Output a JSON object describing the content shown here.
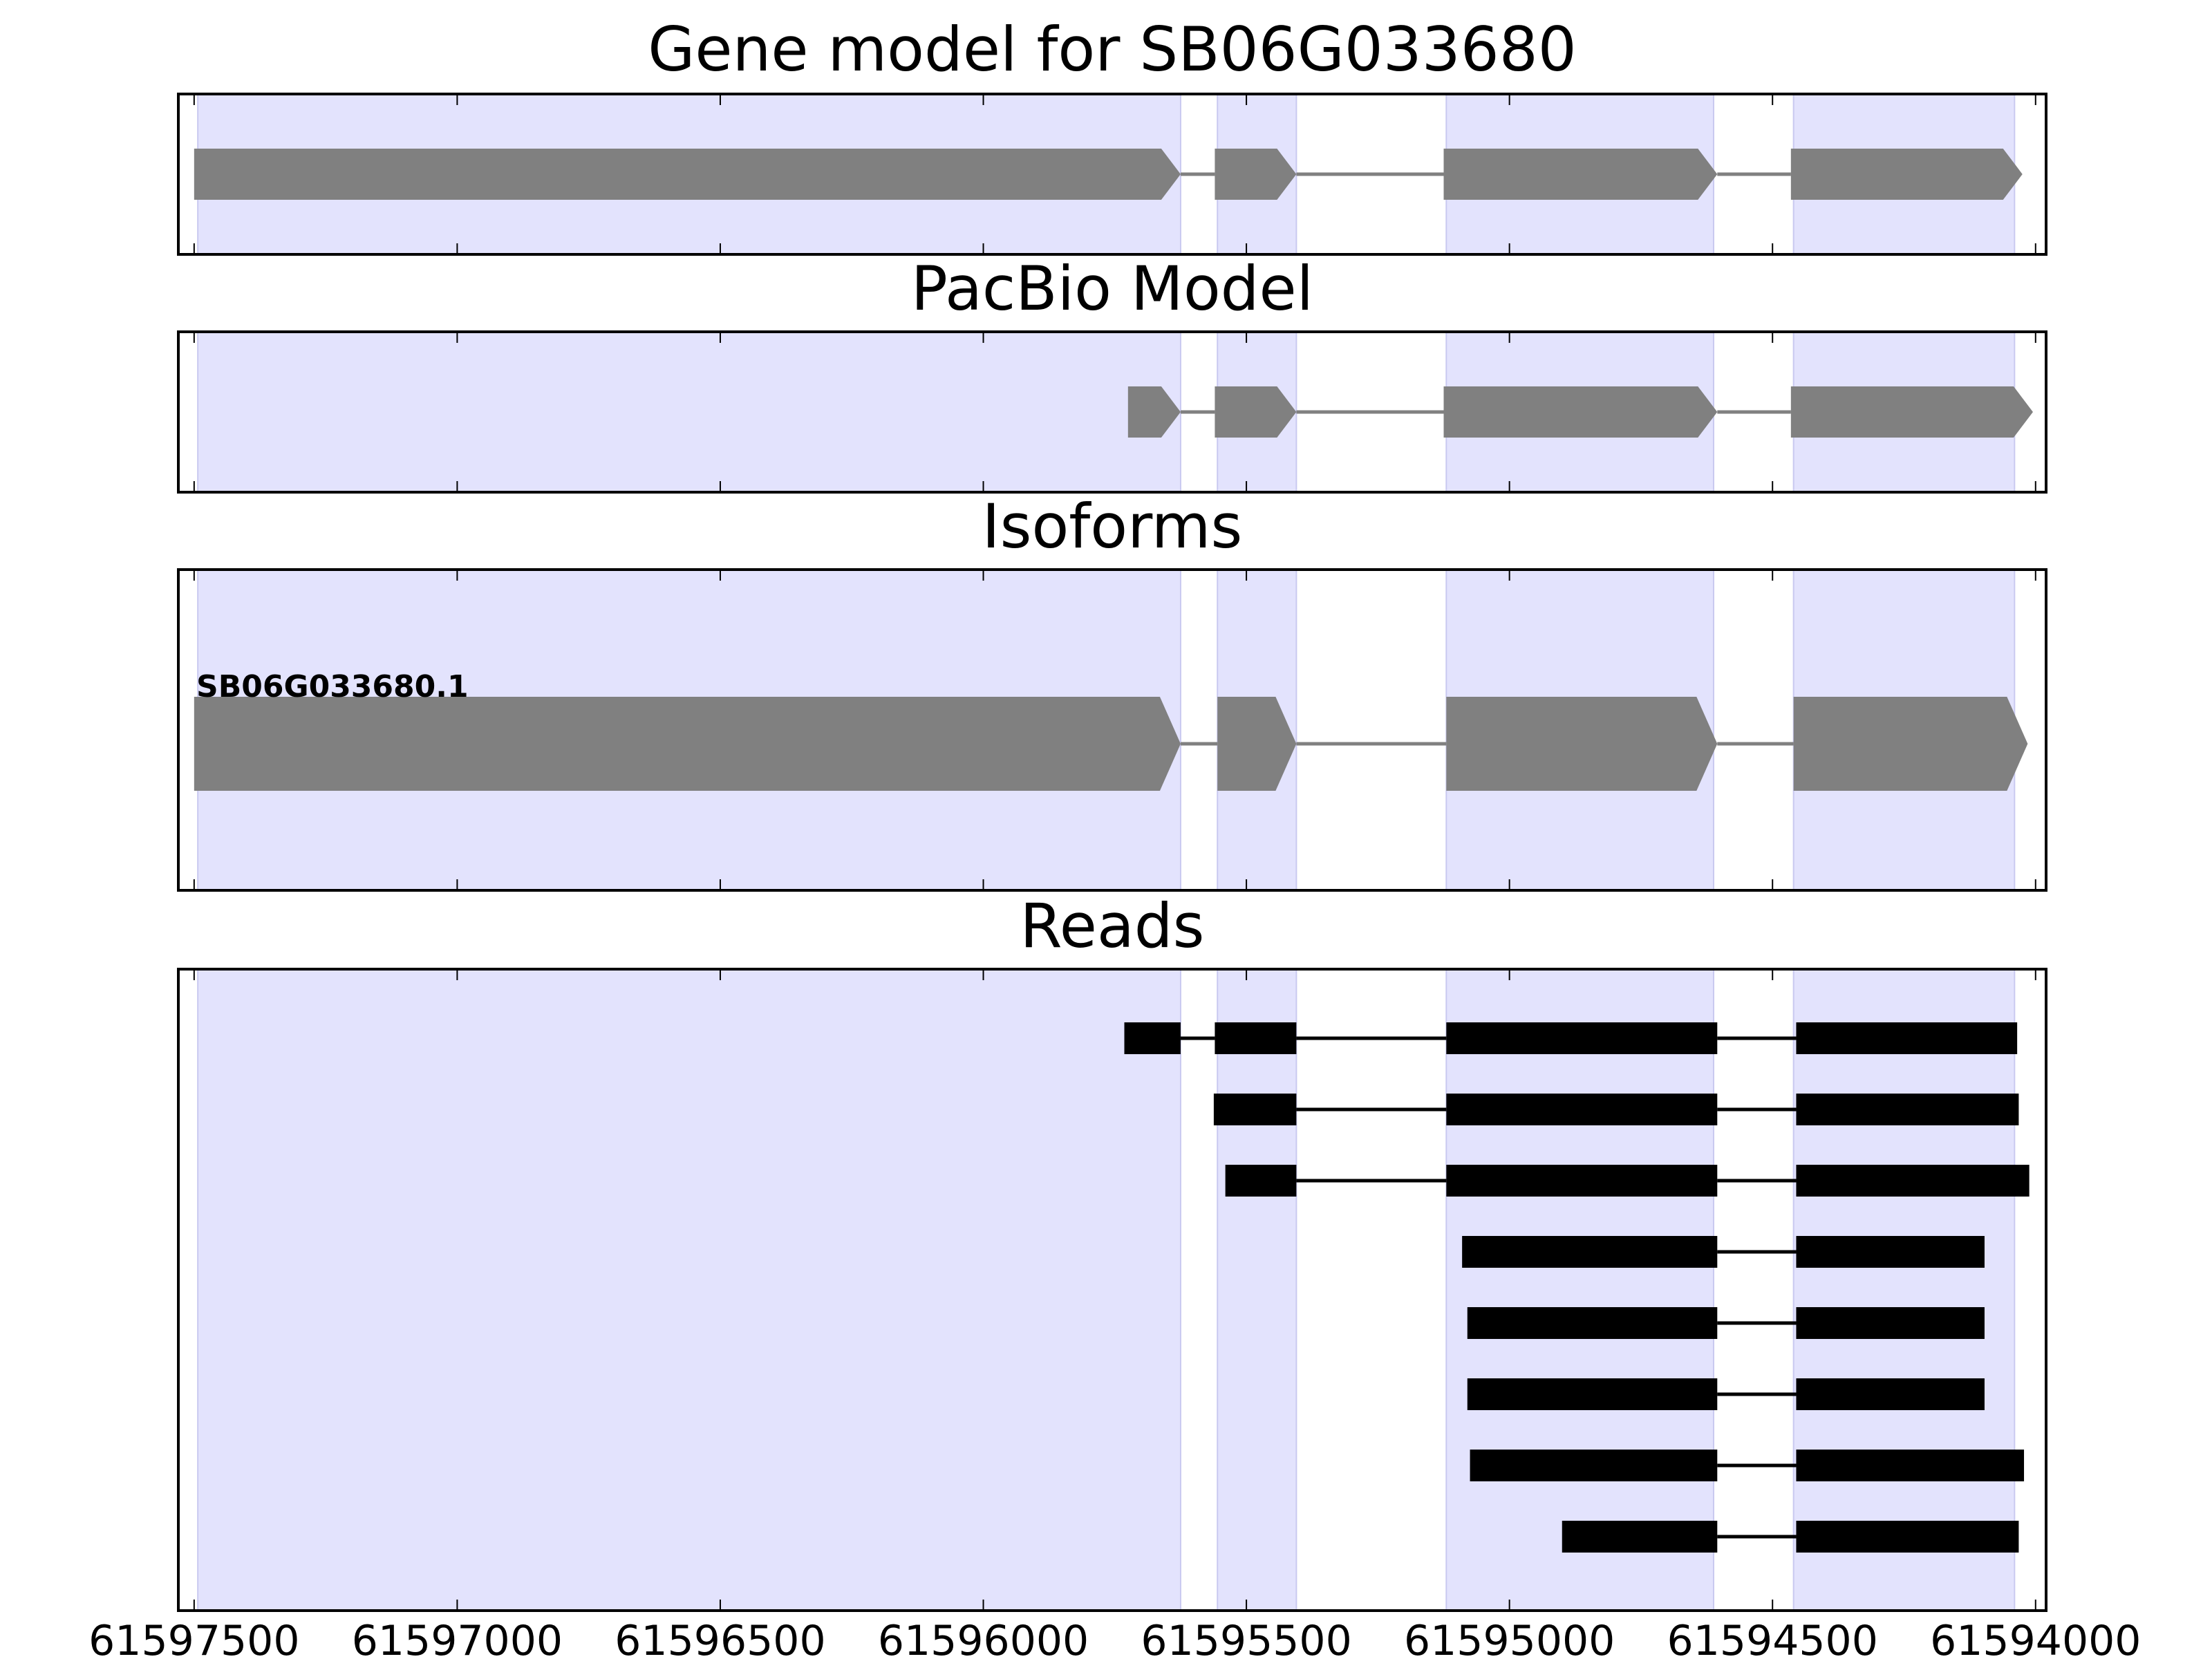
{
  "panels": [
    {
      "key": "gene_model",
      "title": "Gene model for SB06G033680"
    },
    {
      "key": "pacbio",
      "title": "PacBio Model"
    },
    {
      "key": "isoforms",
      "title": "Isoforms"
    },
    {
      "key": "reads",
      "title": "Reads"
    }
  ],
  "axis": {
    "xlim": [
      61597530,
      61593980
    ],
    "ticks": [
      61597500,
      61597000,
      61596500,
      61596000,
      61595500,
      61595000,
      61594500,
      61594000
    ],
    "tick_labels": [
      "61597500",
      "61597000",
      "61596500",
      "61596000",
      "61595500",
      "61595000",
      "61594500",
      "61594000"
    ]
  },
  "colors": {
    "exon_highlight": "#e3e3fd",
    "gene_feature": "#808080",
    "read_feature": "#000000",
    "axes": "#000000"
  },
  "chart_data": {
    "type": "gene_track",
    "highlighted_exons": [
      [
        61597493,
        61595625
      ],
      [
        61595555,
        61595405
      ],
      [
        61595120,
        61594612
      ],
      [
        61594460,
        61594040
      ]
    ],
    "gene_model": {
      "exons": [
        [
          61597500,
          61595625
        ],
        [
          61595560,
          61595405
        ],
        [
          61595125,
          61594605
        ],
        [
          61594465,
          61594025
        ]
      ]
    },
    "pacbio_model": {
      "exons": [
        [
          61595725,
          61595625
        ],
        [
          61595560,
          61595405
        ],
        [
          61595125,
          61594605
        ],
        [
          61594465,
          61594005
        ]
      ]
    },
    "isoforms": [
      {
        "name": "SB06G033680.1",
        "exons": [
          [
            61597500,
            61595625
          ],
          [
            61595555,
            61595405
          ],
          [
            61595120,
            61594605
          ],
          [
            61594460,
            61594015
          ]
        ]
      }
    ],
    "reads": [
      {
        "exons": [
          [
            61595732,
            61595625
          ],
          [
            61595560,
            61595405
          ],
          [
            61595120,
            61594605
          ],
          [
            61594455,
            61594035
          ]
        ]
      },
      {
        "exons": [
          [
            61595562,
            61595405
          ],
          [
            61595120,
            61594605
          ],
          [
            61594455,
            61594032
          ]
        ]
      },
      {
        "exons": [
          [
            61595540,
            61595405
          ],
          [
            61595120,
            61594605
          ],
          [
            61594455,
            61594012
          ]
        ]
      },
      {
        "exons": [
          [
            61595090,
            61594605
          ],
          [
            61594455,
            61594097
          ]
        ]
      },
      {
        "exons": [
          [
            61595080,
            61594605
          ],
          [
            61594455,
            61594097
          ]
        ]
      },
      {
        "exons": [
          [
            61595080,
            61594605
          ],
          [
            61594455,
            61594097
          ]
        ]
      },
      {
        "exons": [
          [
            61595075,
            61594605
          ],
          [
            61594455,
            61594022
          ]
        ]
      },
      {
        "exons": [
          [
            61594900,
            61594605
          ],
          [
            61594455,
            61594032
          ]
        ]
      }
    ]
  }
}
